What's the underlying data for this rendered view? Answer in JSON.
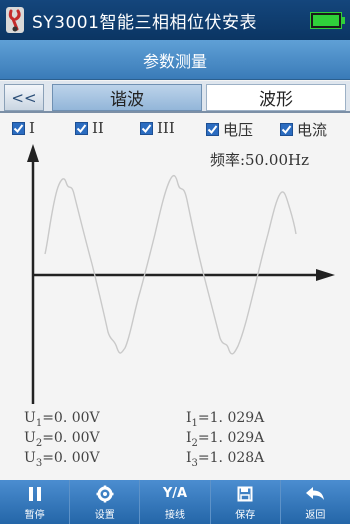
{
  "header": {
    "title": "SY3001智能三相相位伏安表",
    "subtitle": "参数测量"
  },
  "tabs": {
    "back_label": "<<",
    "items": [
      {
        "label": "谐波",
        "selected": true
      },
      {
        "label": "波形",
        "selected": false
      }
    ]
  },
  "checkboxes": [
    {
      "label": "I",
      "checked": true
    },
    {
      "label": "II",
      "checked": true
    },
    {
      "label": "III",
      "checked": true
    },
    {
      "label": "电压",
      "checked": true
    },
    {
      "label": "电流",
      "checked": true
    }
  ],
  "plot": {
    "frequency_label": "频率:50.00Hz"
  },
  "readouts": {
    "u1": {
      "sym": "U",
      "sub": "1",
      "val": "=0. 00V"
    },
    "u2": {
      "sym": "U",
      "sub": "2",
      "val": "=0. 00V"
    },
    "u3": {
      "sym": "U",
      "sub": "3",
      "val": "=0. 00V"
    },
    "i1": {
      "sym": "I",
      "sub": "1",
      "val": "=1. 029A"
    },
    "i2": {
      "sym": "I",
      "sub": "2",
      "val": "=1. 029A"
    },
    "i3": {
      "sym": "I",
      "sub": "3",
      "val": "=1. 028A"
    }
  },
  "toolbar": [
    {
      "label": "暂停",
      "icon": "pause-icon"
    },
    {
      "label": "设置",
      "icon": "gear-icon"
    },
    {
      "label": "接线",
      "icon": "wiring-icon",
      "icon_text": "Y/A"
    },
    {
      "label": "保存",
      "icon": "save-icon"
    },
    {
      "label": "返回",
      "icon": "return-icon"
    }
  ],
  "colors": {
    "title_bar": "#0b3563",
    "subheader": "#3a7bb8",
    "checkbox": "#2b6cc0",
    "toolbar": "#2466a8",
    "battery": "#2fcf3a"
  }
}
